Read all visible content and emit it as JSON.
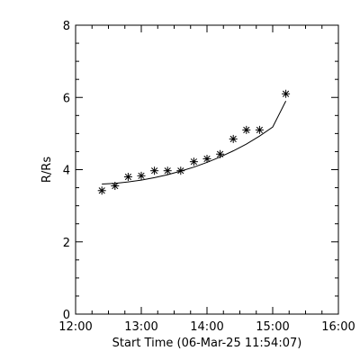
{
  "chart_data": {
    "type": "scatter",
    "title": "",
    "xlabel": "Start Time (06-Mar-25 11:54:07)",
    "ylabel": "R/Rs",
    "xlim": [
      "12:00",
      "16:00"
    ],
    "ylim": [
      0,
      8
    ],
    "x_ticks": [
      "12:00",
      "13:00",
      "14:00",
      "15:00",
      "16:00"
    ],
    "y_ticks": [
      0,
      2,
      4,
      6,
      8
    ],
    "grid": false,
    "legend": "none",
    "series": [
      {
        "marker": "asterisk",
        "x": [
          "12:24",
          "12:36",
          "12:48",
          "13:00",
          "13:12",
          "13:24",
          "13:36",
          "13:48",
          "14:00",
          "14:12",
          "14:24",
          "14:36",
          "14:48",
          "15:12"
        ],
        "y": [
          3.42,
          3.55,
          3.8,
          3.83,
          3.97,
          3.97,
          3.97,
          4.22,
          4.3,
          4.43,
          4.85,
          5.1,
          5.1,
          6.1
        ]
      }
    ],
    "fit": {
      "style": "solid-line",
      "x": [
        "12:24",
        "12:36",
        "12:48",
        "13:00",
        "13:12",
        "13:24",
        "13:36",
        "13:48",
        "14:00",
        "14:12",
        "14:24",
        "14:36",
        "14:48",
        "15:00",
        "15:12"
      ],
      "y": [
        3.6,
        3.62,
        3.66,
        3.71,
        3.78,
        3.86,
        3.96,
        4.07,
        4.2,
        4.35,
        4.52,
        4.71,
        4.93,
        5.18,
        5.9
      ]
    },
    "colors": {
      "background": "#ffffff",
      "axis": "#000000",
      "marks": "#000000"
    }
  }
}
